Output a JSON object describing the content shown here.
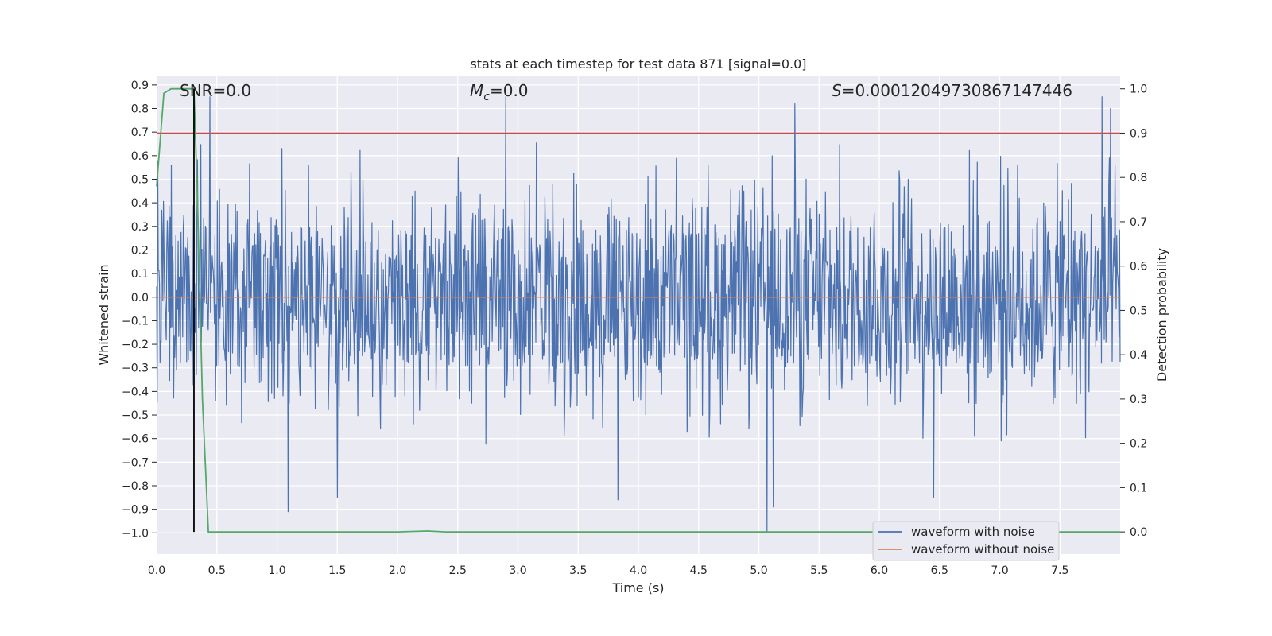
{
  "chart_data": {
    "type": "line",
    "title": "stats at each timestep for test data 871 [signal=0.0]",
    "xlabel": "Time (s)",
    "ylabel": "Whitened strain",
    "y2label": "Detection probability",
    "xlim": [
      0.0,
      8.0
    ],
    "ylim": [
      -1.09,
      0.94
    ],
    "y2lim": [
      -0.05,
      1.03
    ],
    "x_ticks": [
      "0.0",
      "0.5",
      "1.0",
      "1.5",
      "2.0",
      "2.5",
      "3.0",
      "3.5",
      "4.0",
      "4.5",
      "5.0",
      "5.5",
      "6.0",
      "6.5",
      "7.0",
      "7.5"
    ],
    "y_ticks": [
      "0.9",
      "0.8",
      "0.7",
      "0.6",
      "0.5",
      "0.4",
      "0.3",
      "0.2",
      "0.1",
      "0.0",
      "−0.1",
      "−0.2",
      "−0.3",
      "−0.4",
      "−0.5",
      "−0.6",
      "−0.7",
      "−0.8",
      "−0.9",
      "−1.0"
    ],
    "y2_ticks": [
      "1.0",
      "0.9",
      "0.8",
      "0.7",
      "0.6",
      "0.5",
      "0.4",
      "0.3",
      "0.2",
      "0.1",
      "0.0"
    ],
    "grid": true,
    "legend_position": "lower-right",
    "annotations": {
      "snr": "SNR=0.0",
      "mc_symbol": "M",
      "mc_sub": "c",
      "mc_value": "=0.0",
      "s_symbol": "S",
      "s_value": "=0.00012049730867147446"
    },
    "series": [
      {
        "name": "waveform with noise",
        "axis": "left",
        "color": "#4c72b0",
        "description": "dense noisy whitened strain, mostly within ±0.5 with spikes up to ~0.85 and down to ~−1.0",
        "envelope_typical": 0.3,
        "spikes": [
          [
            0.44,
            0.85
          ],
          [
            1.09,
            -0.91
          ],
          [
            1.5,
            -0.85
          ],
          [
            2.9,
            0.85
          ],
          [
            3.83,
            -0.86
          ],
          [
            5.07,
            -1.0
          ],
          [
            5.12,
            -0.89
          ],
          [
            5.3,
            0.82
          ],
          [
            6.45,
            -0.85
          ],
          [
            7.85,
            0.85
          ],
          [
            7.92,
            0.8
          ]
        ]
      },
      {
        "name": "waveform without noise",
        "axis": "left",
        "color": "#dd8452",
        "x": [
          0.0,
          8.0
        ],
        "y": [
          0.0,
          0.0
        ]
      },
      {
        "name": "detection probability",
        "axis": "right",
        "color": "#55a868",
        "x": [
          0.0,
          0.06,
          0.12,
          0.2,
          0.28,
          0.31,
          0.34,
          0.38,
          0.43,
          1.0,
          2.0,
          2.25,
          2.4,
          4.0,
          6.0,
          8.0
        ],
        "y": [
          0.78,
          0.99,
          1.0,
          1.0,
          1.0,
          1.0,
          0.74,
          0.3,
          0.0,
          0.0,
          0.0,
          0.002,
          0.0,
          0.0,
          0.0,
          0.0
        ]
      }
    ],
    "threshold_line": {
      "axis": "right",
      "value": 0.9,
      "color": "#c44e52"
    },
    "marker_line": {
      "x": 0.31,
      "color": "#000000",
      "from_y2": 0.0,
      "to_y2": 1.0
    }
  }
}
